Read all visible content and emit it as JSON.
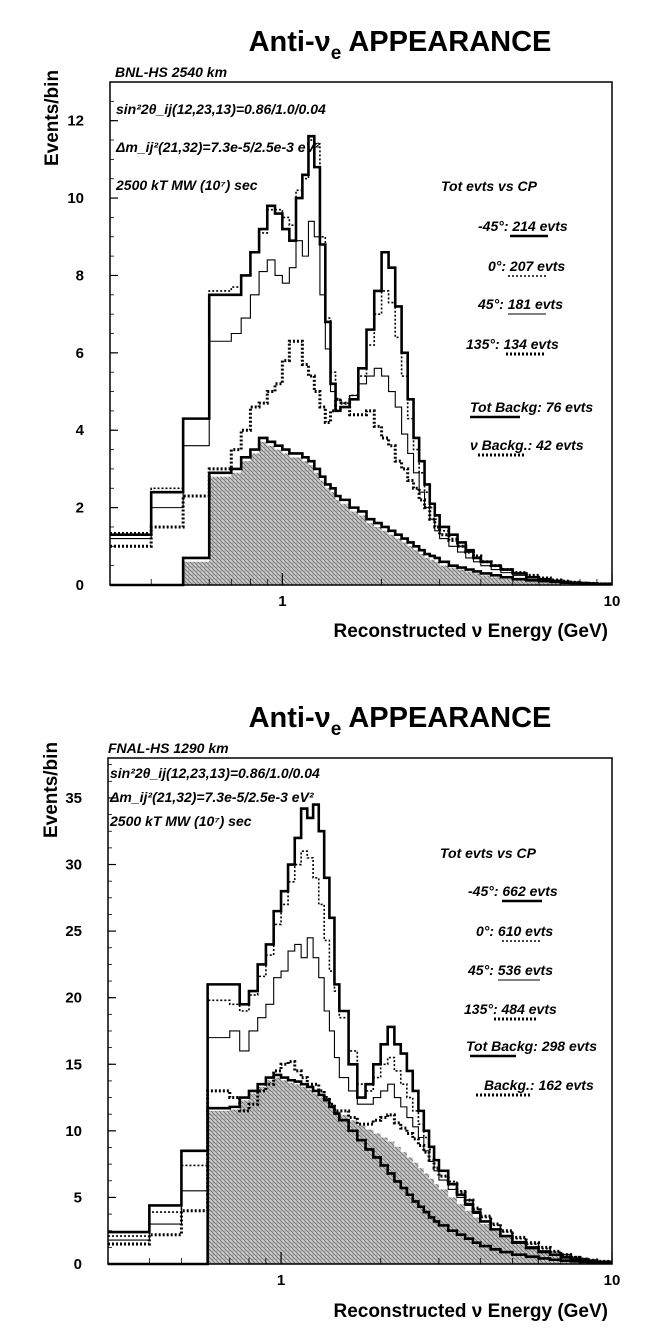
{
  "chart_data": [
    {
      "type": "line",
      "title": "Anti-ν",
      "title_sub": "e",
      "title_rest": " APPEARANCE",
      "subtitle": "BNL-HS  2540 km",
      "xlabel": "Reconstructed ν Energy (GeV)",
      "ylabel": "Events/bin",
      "xscale": "log",
      "xlim": [
        0.3,
        10
      ],
      "ylim": [
        0,
        13
      ],
      "yticks": [
        0,
        2,
        4,
        6,
        8,
        10,
        12
      ],
      "xticks": [
        {
          "v": 1,
          "label": "1"
        },
        {
          "v": 10,
          "label": "10"
        }
      ],
      "annotations": [
        "sin²2θ_ij(12,23,13)=0.86/1.0/0.04",
        "Δm_ij²(21,32)=7.3e-5/2.5e-3 eV²",
        "2500 kT MW (10⁷) sec"
      ],
      "legend_title": "Tot evts vs CP",
      "legend_position": "right",
      "legend": [
        {
          "pre": "-45°:",
          "val": " 214",
          "post": " evts"
        },
        {
          "pre": "0°:",
          "val": " 207",
          "post": "  evts"
        },
        {
          "pre": "45°:",
          "val": " 181",
          "post": "  evts"
        },
        {
          "pre": "135°:",
          "val": " 134",
          "post": "  evts"
        },
        {
          "pre": "Tot Backg:",
          "val": " 76",
          "post": " evts"
        },
        {
          "pre": "ν Backg.:",
          "val": " 42",
          "post": " evts"
        }
      ],
      "edges": [
        0.3,
        0.4,
        0.5,
        0.6,
        0.7,
        0.75,
        0.8,
        0.85,
        0.9,
        0.95,
        1.0,
        1.05,
        1.1,
        1.15,
        1.2,
        1.25,
        1.3,
        1.35,
        1.4,
        1.45,
        1.5,
        1.6,
        1.7,
        1.8,
        1.9,
        2.0,
        2.1,
        2.2,
        2.3,
        2.4,
        2.5,
        2.6,
        2.7,
        2.8,
        2.9,
        3.0,
        3.2,
        3.4,
        3.6,
        3.8,
        4.0,
        4.3,
        4.6,
        5.0,
        5.5,
        6.0,
        6.5,
        7.0,
        7.5,
        8.0,
        8.5,
        9.0,
        10.0
      ],
      "series": [
        {
          "style": "solid-thick",
          "values": [
            1.3,
            2.4,
            4.3,
            7.5,
            7.5,
            8.0,
            8.6,
            9.2,
            9.8,
            9.6,
            9.2,
            8.9,
            10.0,
            10.6,
            11.6,
            10.8,
            8.8,
            6.8,
            5.2,
            4.5,
            4.6,
            4.8,
            5.6,
            6.6,
            7.6,
            8.6,
            8.2,
            7.2,
            6.0,
            4.8,
            3.8,
            3.2,
            2.6,
            2.1,
            1.8,
            1.5,
            1.3,
            1.1,
            0.9,
            0.7,
            0.6,
            0.5,
            0.4,
            0.3,
            0.2,
            0.15,
            0.1,
            0.08,
            0.06,
            0.05,
            0.04,
            0.03
          ]
        },
        {
          "style": "dotted",
          "values": [
            1.35,
            2.5,
            4.3,
            7.6,
            7.7,
            8.0,
            8.6,
            9.1,
            9.7,
            9.7,
            9.5,
            9.3,
            10.2,
            10.5,
            11.5,
            11.4,
            9.0,
            6.9,
            5.5,
            4.8,
            4.7,
            4.9,
            5.4,
            6.2,
            7.0,
            7.6,
            7.3,
            6.4,
            5.4,
            4.3,
            3.5,
            2.9,
            2.4,
            2.0,
            1.7,
            1.4,
            1.2,
            1.0,
            0.85,
            0.7,
            0.6,
            0.5,
            0.4,
            0.3,
            0.22,
            0.16,
            0.12,
            0.09,
            0.07,
            0.05,
            0.04,
            0.03
          ]
        },
        {
          "style": "solid-thin",
          "values": [
            1.2,
            2.0,
            3.6,
            6.3,
            6.5,
            6.9,
            7.5,
            8.1,
            8.4,
            8.0,
            7.8,
            8.2,
            8.9,
            8.5,
            9.4,
            9.0,
            7.5,
            6.1,
            5.0,
            4.5,
            4.6,
            4.9,
            5.2,
            5.4,
            5.6,
            5.4,
            5.0,
            4.6,
            3.9,
            3.4,
            2.9,
            2.4,
            2.0,
            1.7,
            1.4,
            1.2,
            1.0,
            0.85,
            0.7,
            0.6,
            0.5,
            0.4,
            0.32,
            0.25,
            0.18,
            0.13,
            0.1,
            0.07,
            0.05,
            0.04,
            0.03,
            0.02
          ]
        },
        {
          "style": "dotted-thick",
          "values": [
            1.0,
            1.5,
            2.3,
            3.0,
            3.5,
            4.0,
            4.6,
            4.7,
            5.0,
            5.2,
            5.8,
            6.3,
            6.3,
            5.7,
            5.4,
            5.0,
            4.6,
            4.2,
            4.5,
            4.8,
            4.7,
            4.4,
            4.4,
            4.5,
            4.1,
            3.8,
            3.6,
            3.2,
            3.0,
            2.7,
            2.5,
            2.2,
            2.0,
            1.7,
            1.5,
            1.3,
            1.15,
            1.0,
            0.85,
            0.75,
            0.6,
            0.5,
            0.4,
            0.32,
            0.25,
            0.18,
            0.13,
            0.1,
            0.07,
            0.05,
            0.04,
            0.03
          ]
        },
        {
          "style": "solid-thick",
          "values": [
            0.0,
            0.0,
            0.7,
            2.9,
            3.0,
            3.3,
            3.5,
            3.8,
            3.7,
            3.6,
            3.5,
            3.4,
            3.4,
            3.3,
            3.2,
            3.0,
            2.8,
            2.6,
            2.5,
            2.3,
            2.2,
            2.0,
            1.9,
            1.7,
            1.6,
            1.5,
            1.4,
            1.3,
            1.2,
            1.1,
            1.0,
            0.9,
            0.8,
            0.75,
            0.7,
            0.6,
            0.5,
            0.45,
            0.4,
            0.35,
            0.3,
            0.25,
            0.2,
            0.15,
            0.12,
            0.1,
            0.08,
            0.06,
            0.05,
            0.04,
            0.03,
            0.02
          ]
        },
        {
          "style": "shaded",
          "values": [
            0.0,
            0.0,
            0.6,
            2.8,
            2.9,
            3.2,
            3.4,
            3.7,
            3.6,
            3.5,
            3.4,
            3.3,
            3.3,
            3.2,
            3.1,
            2.9,
            2.7,
            2.5,
            2.4,
            2.2,
            2.1,
            1.9,
            1.8,
            1.6,
            1.5,
            1.4,
            1.3,
            1.2,
            1.1,
            1.0,
            0.9,
            0.8,
            0.7,
            0.65,
            0.6,
            0.5,
            0.45,
            0.4,
            0.35,
            0.3,
            0.25,
            0.2,
            0.16,
            0.13,
            0.1,
            0.08,
            0.06,
            0.05,
            0.04,
            0.03,
            0.02,
            0.02
          ]
        }
      ]
    },
    {
      "type": "line",
      "title": "Anti-ν",
      "title_sub": "e",
      "title_rest": " APPEARANCE",
      "subtitle": "FNAL-HS  1290 km",
      "xlabel": "Reconstructed ν Energy (GeV)",
      "ylabel": "Events/bin",
      "xscale": "log",
      "xlim": [
        0.3,
        10
      ],
      "ylim": [
        0,
        38
      ],
      "yticks": [
        0,
        5,
        10,
        15,
        20,
        25,
        30,
        35
      ],
      "xticks": [
        {
          "v": 1,
          "label": "1"
        },
        {
          "v": 10,
          "label": "10"
        }
      ],
      "annotations": [
        "sin²2θ_ij(12,23,13)=0.86/1.0/0.04",
        "Δm_ij²(21,32)=7.3e-5/2.5e-3 eV²",
        "2500 kT MW (10⁷) sec"
      ],
      "legend_title": "Tot evts vs CP",
      "legend_position": "right",
      "legend": [
        {
          "pre": "-45°:",
          "val": " 662",
          "post": " evts"
        },
        {
          "pre": "0°:",
          "val": " 610",
          "post": "  evts"
        },
        {
          "pre": "45°:",
          "val": " 536",
          "post": "  evts"
        },
        {
          "pre": "135°:",
          "val": " 484",
          "post": "  evts"
        },
        {
          "pre": "Tot Backg:",
          "val": " 298",
          "post": " evts"
        },
        {
          "pre": "Backg.:",
          "val": " 162",
          "post": " evts"
        }
      ],
      "edges": [
        0.3,
        0.4,
        0.5,
        0.6,
        0.7,
        0.75,
        0.8,
        0.85,
        0.9,
        0.95,
        1.0,
        1.05,
        1.1,
        1.15,
        1.2,
        1.25,
        1.3,
        1.35,
        1.4,
        1.45,
        1.5,
        1.6,
        1.7,
        1.8,
        1.9,
        2.0,
        2.1,
        2.2,
        2.3,
        2.4,
        2.5,
        2.6,
        2.7,
        2.8,
        2.9,
        3.0,
        3.2,
        3.4,
        3.6,
        3.8,
        4.0,
        4.3,
        4.6,
        5.0,
        5.5,
        6.0,
        6.5,
        7.0,
        7.5,
        8.0,
        8.5,
        9.0,
        10.0
      ],
      "series": [
        {
          "style": "solid-thick",
          "values": [
            2.4,
            4.4,
            8.5,
            21.0,
            21.0,
            19.5,
            20.5,
            22.5,
            24.0,
            26.5,
            28.0,
            30.0,
            32.0,
            34.2,
            33.5,
            34.5,
            32.5,
            29.0,
            26.0,
            21.0,
            19.0,
            15.0,
            12.5,
            13.5,
            15.0,
            16.5,
            17.8,
            16.5,
            15.8,
            14.5,
            13.0,
            11.5,
            10.0,
            8.8,
            7.8,
            7.0,
            6.0,
            5.2,
            4.5,
            3.9,
            3.2,
            2.6,
            2.1,
            1.6,
            1.2,
            0.9,
            0.7,
            0.5,
            0.4,
            0.3,
            0.2,
            0.15
          ]
        },
        {
          "style": "dotted",
          "values": [
            2.1,
            3.9,
            7.4,
            19.8,
            19.5,
            19.0,
            20.2,
            21.6,
            23.2,
            25.5,
            27.0,
            28.7,
            30.0,
            31.0,
            30.5,
            29.0,
            27.0,
            24.3,
            22.0,
            20.5,
            18.5,
            16.0,
            13.5,
            13.0,
            14.0,
            15.0,
            15.5,
            14.5,
            13.5,
            12.5,
            11.5,
            10.5,
            9.5,
            8.6,
            7.8,
            7.0,
            6.2,
            5.5,
            4.8,
            4.1,
            3.5,
            2.9,
            2.4,
            1.9,
            1.5,
            1.15,
            0.9,
            0.7,
            0.55,
            0.4,
            0.3,
            0.2
          ]
        },
        {
          "style": "solid-thin",
          "values": [
            1.8,
            3.0,
            5.5,
            17.0,
            17.5,
            16.0,
            17.5,
            18.5,
            19.5,
            21.5,
            22.0,
            23.5,
            24.0,
            23.0,
            24.5,
            23.0,
            21.5,
            19.0,
            17.5,
            15.5,
            14.0,
            13.0,
            12.0,
            12.0,
            12.5,
            13.0,
            13.5,
            12.5,
            11.8,
            11.0,
            10.3,
            9.5,
            8.5,
            7.7,
            7.0,
            6.3,
            5.6,
            5.0,
            4.4,
            3.8,
            3.2,
            2.6,
            2.1,
            1.7,
            1.3,
            1.0,
            0.75,
            0.55,
            0.4,
            0.3,
            0.2,
            0.15
          ]
        },
        {
          "style": "dotted-thick",
          "values": [
            1.5,
            2.2,
            4.0,
            13.0,
            12.5,
            11.5,
            12.0,
            13.0,
            13.5,
            14.5,
            15.0,
            15.2,
            14.5,
            14.0,
            13.5,
            13.5,
            13.0,
            12.5,
            12.0,
            11.5,
            11.5,
            11.0,
            10.5,
            10.5,
            10.8,
            11.0,
            11.2,
            10.6,
            10.2,
            9.8,
            9.4,
            8.9,
            8.4,
            7.8,
            7.2,
            6.6,
            6.0,
            5.4,
            4.8,
            4.2,
            3.6,
            3.0,
            2.5,
            2.0,
            1.6,
            1.25,
            0.95,
            0.7,
            0.5,
            0.38,
            0.28,
            0.2
          ]
        },
        {
          "style": "solid-thick",
          "values": [
            0.0,
            0.0,
            0.0,
            11.7,
            11.8,
            12.5,
            13.0,
            13.5,
            14.0,
            14.2,
            14.0,
            13.8,
            13.7,
            13.5,
            13.3,
            13.0,
            12.7,
            12.3,
            11.8,
            11.3,
            10.8,
            10.0,
            9.3,
            8.6,
            8.0,
            7.4,
            6.8,
            6.2,
            5.7,
            5.2,
            4.7,
            4.3,
            3.9,
            3.5,
            3.2,
            2.9,
            2.5,
            2.2,
            1.9,
            1.6,
            1.35,
            1.1,
            0.9,
            0.7,
            0.55,
            0.42,
            0.32,
            0.25,
            0.2,
            0.15,
            0.11,
            0.08
          ]
        },
        {
          "style": "shaded",
          "values": [
            0.0,
            0.0,
            0.0,
            11.5,
            11.6,
            12.3,
            12.8,
            13.3,
            13.8,
            14.0,
            13.8,
            13.6,
            13.5,
            13.3,
            13.1,
            12.8,
            12.5,
            12.2,
            11.9,
            11.5,
            11.2,
            10.8,
            10.4,
            10.1,
            9.8,
            9.5,
            9.2,
            8.8,
            8.4,
            8.0,
            7.6,
            7.2,
            6.8,
            6.4,
            6.0,
            5.6,
            5.0,
            4.5,
            4.0,
            3.5,
            3.0,
            2.5,
            2.0,
            1.6,
            1.25,
            0.95,
            0.7,
            0.5,
            0.38,
            0.28,
            0.2,
            0.15
          ]
        }
      ]
    }
  ]
}
